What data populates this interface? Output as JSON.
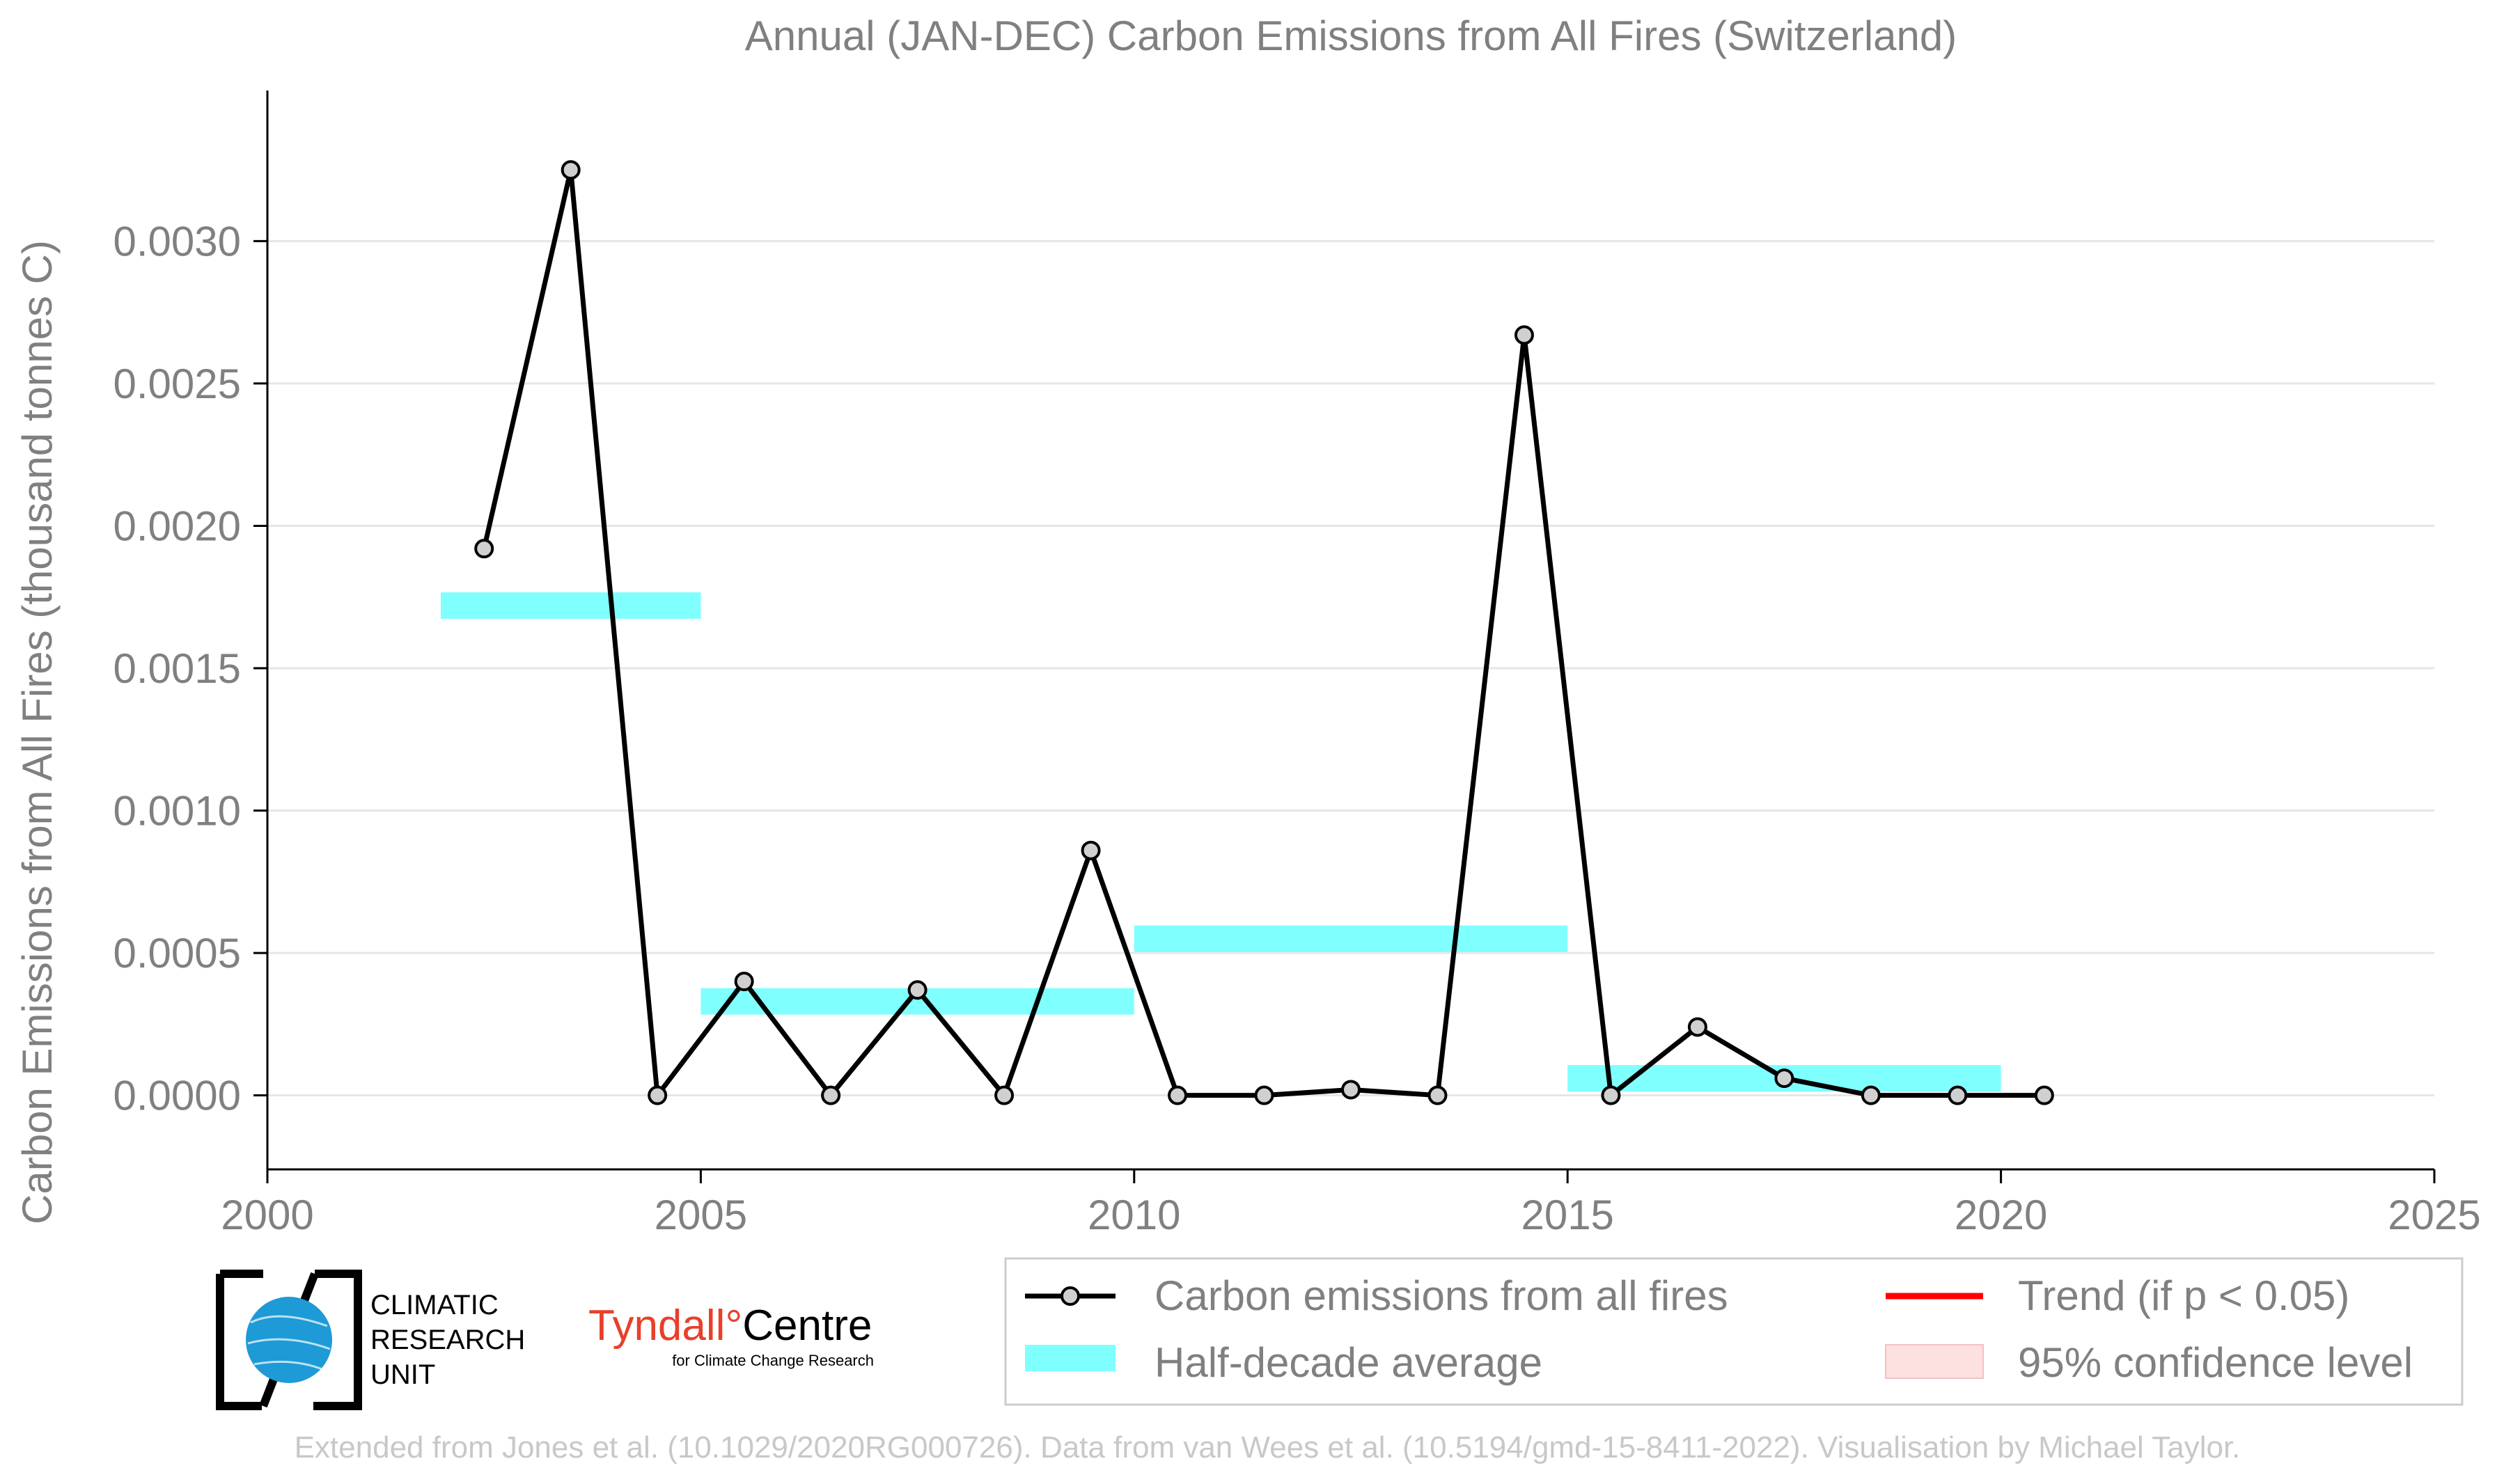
{
  "chart_data": {
    "type": "line",
    "title": "Annual (JAN-DEC) Carbon Emissions from All Fires (Switzerland)",
    "xlabel": "",
    "ylabel": "Carbon Emissions from All Fires (thousand tonnes C)",
    "xlim": [
      2000,
      2025
    ],
    "ylim": [
      -0.00026,
      0.00348
    ],
    "x_ticks": [
      2000,
      2005,
      2010,
      2015,
      2020,
      2025
    ],
    "x_tick_labels": [
      "2000",
      "2005",
      "2010",
      "2015",
      "2020",
      "2025"
    ],
    "y_ticks": [
      0.0,
      0.0005,
      0.001,
      0.0015,
      0.002,
      0.0025,
      0.003
    ],
    "y_tick_labels": [
      "0.0000",
      "0.0005",
      "0.0010",
      "0.0015",
      "0.0020",
      "0.0025",
      "0.0030"
    ],
    "grid": "horizontal",
    "series": [
      {
        "name": "Carbon emissions from all fires",
        "color": "#000000",
        "x": [
          2002.5,
          2003.5,
          2004.5,
          2005.5,
          2006.5,
          2007.5,
          2008.5,
          2009.5,
          2010.5,
          2011.5,
          2012.5,
          2013.5,
          2014.5,
          2015.5,
          2016.5,
          2017.5,
          2018.5,
          2019.5,
          2020.5
        ],
        "y": [
          0.00192,
          0.00325,
          0.0,
          0.0004,
          0.0,
          0.00037,
          0.0,
          0.00086,
          0.0,
          0.0,
          2e-05,
          0.0,
          0.00267,
          0.0,
          0.00024,
          6e-05,
          0.0,
          0.0,
          0.0
        ]
      }
    ],
    "half_decade_average": {
      "name": "Half-decade average",
      "color": "#80ffff",
      "segments": [
        {
          "x_start": 2002,
          "x_end": 2005,
          "value": 0.00172
        },
        {
          "x_start": 2005,
          "x_end": 2010,
          "value": 0.00033
        },
        {
          "x_start": 2010,
          "x_end": 2015,
          "value": 0.00055
        },
        {
          "x_start": 2015,
          "x_end": 2020,
          "value": 6e-05
        }
      ]
    },
    "legend": {
      "placement": "bottom-right",
      "entries": [
        {
          "label": "Carbon emissions from all fires",
          "kind": "line-marker",
          "color": "#000000"
        },
        {
          "label": "Trend (if p < 0.05)",
          "kind": "line",
          "color": "#ff0000"
        },
        {
          "label": "Half-decade average",
          "kind": "patch",
          "color": "#80ffff"
        },
        {
          "label": "95% confidence level",
          "kind": "patch",
          "color": "#fde0e0"
        }
      ]
    }
  },
  "logos": {
    "cru": {
      "lines": [
        "CLIMATIC",
        "RESEARCH",
        "UNIT"
      ],
      "color": "#1e9ad6"
    },
    "tyndall": {
      "name_part1": "Tyndall",
      "degree": "°",
      "name_part2": "Centre",
      "subtitle": "for Climate Change Research",
      "color": "#e8402a"
    }
  },
  "credit": "Extended from Jones et al. (10.1029/2020RG000726). Data from van Wees et al. (10.5194/gmd-15-8411-2022). Visualisation by Michael Taylor."
}
